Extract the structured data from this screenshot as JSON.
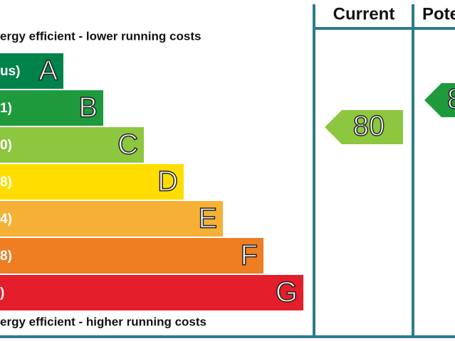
{
  "header": {
    "current": "Current",
    "potential": "Pote"
  },
  "top_note": "ergy efficient - lower running costs",
  "bottom_note": "ergy efficient - higher running costs",
  "bands": [
    {
      "range": "us)",
      "letter": "A"
    },
    {
      "range": "1)",
      "letter": "B"
    },
    {
      "range": "0)",
      "letter": "C"
    },
    {
      "range": "8)",
      "letter": "D"
    },
    {
      "range": "4)",
      "letter": "E"
    },
    {
      "range": "8)",
      "letter": "F"
    },
    {
      "range": ")",
      "letter": "G"
    }
  ],
  "current": {
    "rating": "80"
  },
  "potential": {
    "rating": "8"
  }
}
